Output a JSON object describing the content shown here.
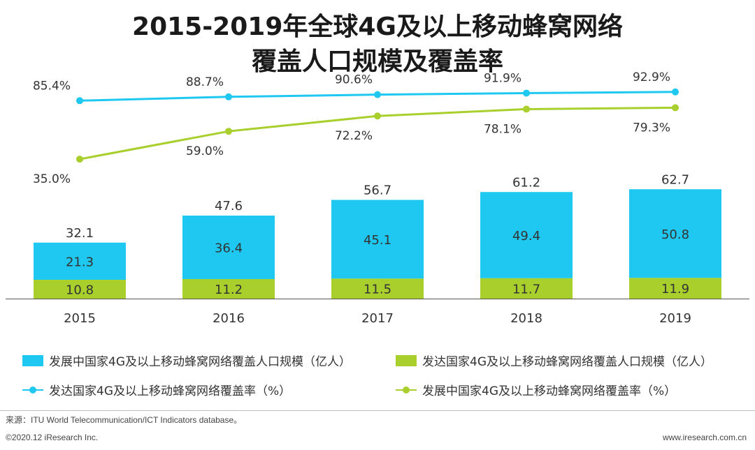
{
  "title": {
    "line1": "2015-2019年全球4G及以上移动蜂窝网络",
    "line2": "覆盖人口规模及覆盖率"
  },
  "colors": {
    "cyan": "#1ec8f0",
    "green": "#a8cf2c",
    "axis": "#555555"
  },
  "chart_data": {
    "type": "bar",
    "stacked": true,
    "categories": [
      "2015",
      "2016",
      "2017",
      "2018",
      "2019"
    ],
    "totals": [
      "32.1",
      "47.6",
      "56.7",
      "61.2",
      "62.7"
    ],
    "series": [
      {
        "name": "发达国家4G及以上移动蜂窝网络覆盖人口规模（亿人）",
        "kind": "bar",
        "color": "#a8cf2c",
        "values": [
          10.8,
          11.2,
          11.5,
          11.7,
          11.9
        ],
        "labels": [
          "10.8",
          "11.2",
          "11.5",
          "11.7",
          "11.9"
        ]
      },
      {
        "name": "发展中国家4G及以上移动蜂窝网络覆盖人口规模（亿人）",
        "kind": "bar",
        "color": "#1ec8f0",
        "values": [
          21.3,
          36.4,
          45.1,
          49.4,
          50.8
        ],
        "labels": [
          "21.3",
          "36.4",
          "45.1",
          "49.4",
          "50.8"
        ]
      },
      {
        "name": "发达国家4G及以上移动蜂窝网络覆盖率（%）",
        "kind": "line",
        "color": "#1ec8f0",
        "values": [
          85.4,
          88.7,
          90.6,
          91.9,
          92.9
        ],
        "labels": [
          "85.4%",
          "88.7%",
          "90.6%",
          "91.9%",
          "92.9%"
        ]
      },
      {
        "name": "发展中国家4G及以上移动蜂窝网络覆盖率（%）",
        "kind": "line",
        "color": "#a8cf2c",
        "values": [
          35.0,
          59.0,
          72.2,
          78.1,
          79.3
        ],
        "labels": [
          "35.0%",
          "59.0%",
          "72.2%",
          "78.1%",
          "79.3%"
        ]
      }
    ],
    "bar_axis_range": [
      0,
      70
    ],
    "line_axis_range": [
      0,
      100
    ],
    "grid": false,
    "legend_position": "bottom"
  },
  "legend": {
    "item1": "发展中国家4G及以上移动蜂窝网络覆盖人口规模（亿人）",
    "item2": "发达国家4G及以上移动蜂窝网络覆盖人口规模（亿人）",
    "item3": "发达国家4G及以上移动蜂窝网络覆盖率（%）",
    "item4": "发展中国家4G及以上移动蜂窝网络覆盖率（%）"
  },
  "footer": {
    "source": "来源：ITU World Telecommunication/ICT Indicators database。",
    "copyright": "©2020.12 iResearch Inc.",
    "website": "www.iresearch.com.cn"
  }
}
